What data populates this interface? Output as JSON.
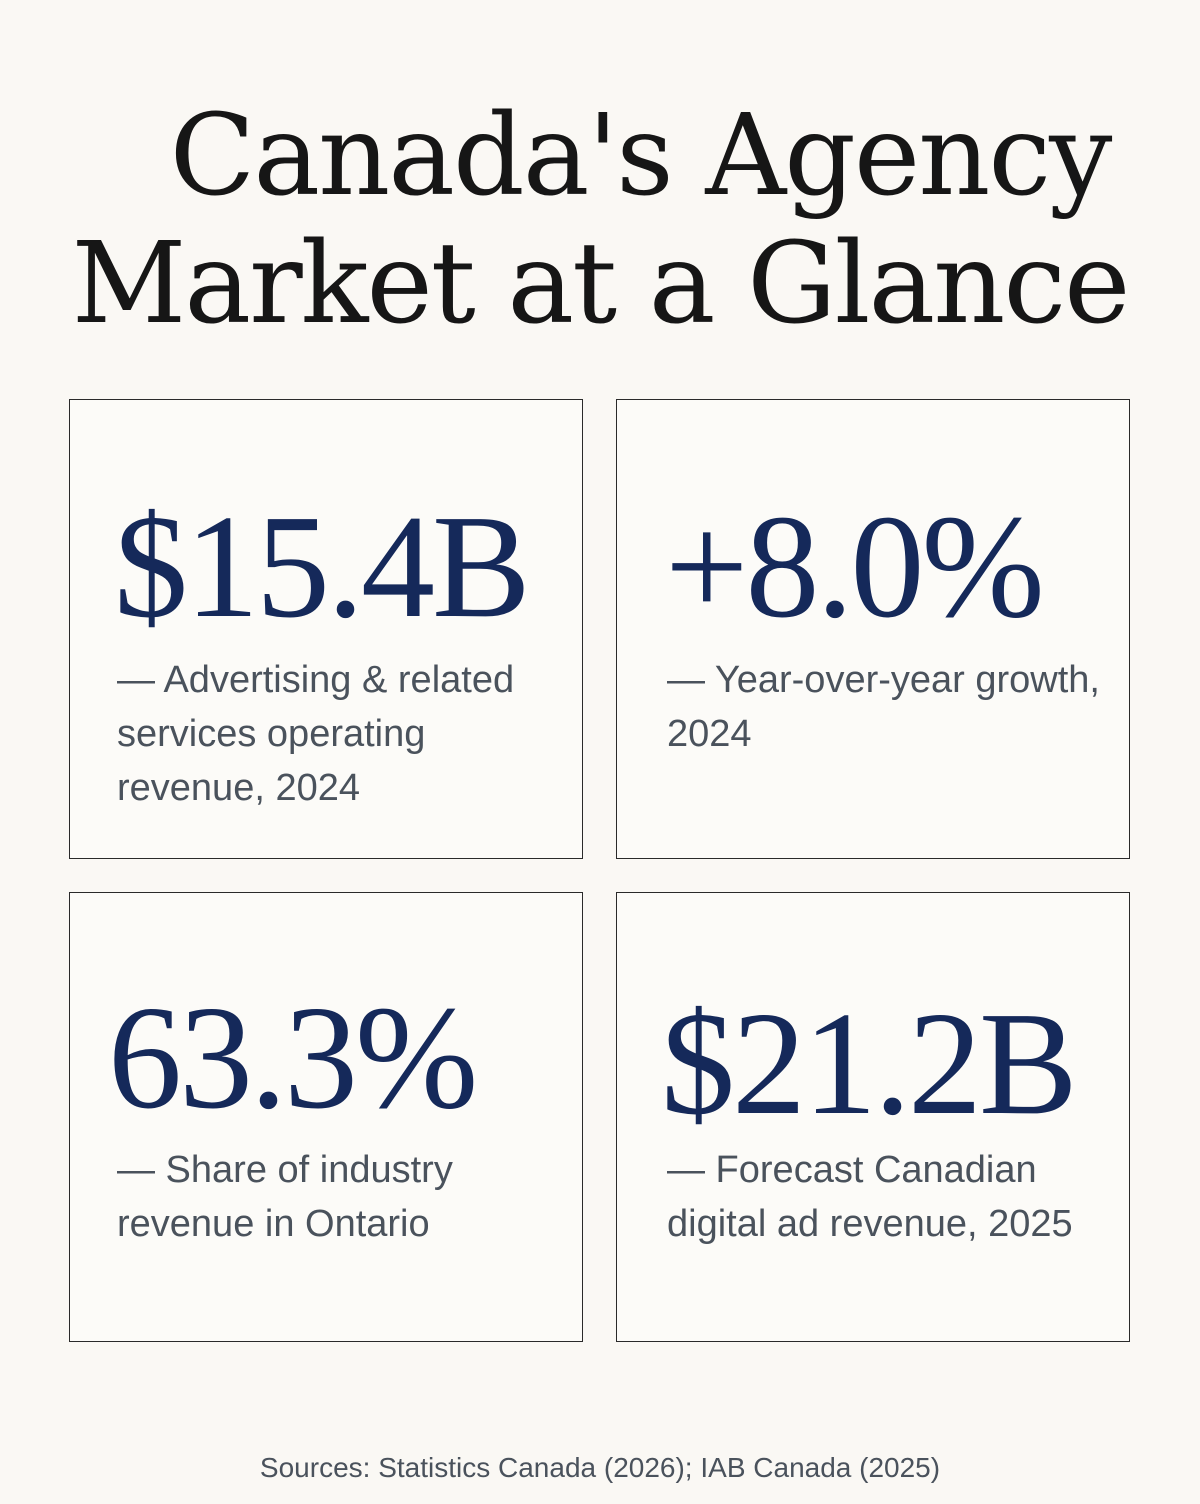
{
  "header": {
    "title_line1": "Canada's Agency",
    "title_line2": "Market at a Glance"
  },
  "cards": [
    {
      "value": "$15.4B",
      "description": "— Advertising & related services operating revenue, 2024"
    },
    {
      "value": "+8.0%",
      "description": "— Year-over-year growth, 2024"
    },
    {
      "value": "63.3%",
      "description": "— Share of industry revenue in Ontario"
    },
    {
      "value": "$21.2B",
      "description": "— Forecast Canadian digital ad revenue, 2025"
    }
  ],
  "footer": {
    "sources": "Sources: Statistics Canada (2026); IAB Canada (2025)"
  },
  "colors": {
    "background": "#faf8f4",
    "stat_accent": "#15295a",
    "body_text": "#4a525c",
    "title_text": "#161616"
  }
}
